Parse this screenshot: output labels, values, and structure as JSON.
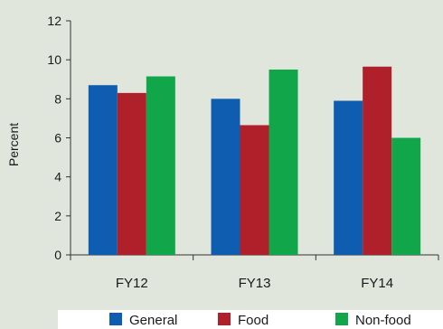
{
  "chart_data": {
    "type": "bar",
    "categories": [
      "FY12",
      "FY13",
      "FY14"
    ],
    "series": [
      {
        "name": "General",
        "values": [
          8.7,
          8.0,
          7.9
        ],
        "color": "#0f5db0"
      },
      {
        "name": "Food",
        "values": [
          8.3,
          6.65,
          9.65
        ],
        "color": "#b0202a"
      },
      {
        "name": "Non-food",
        "values": [
          9.15,
          9.5,
          6.0
        ],
        "color": "#12a64a"
      }
    ],
    "ylabel": "Percent",
    "ylim": [
      0,
      12
    ],
    "yticks": [
      0,
      2,
      4,
      6,
      8,
      10,
      12
    ],
    "legend_position": "bottom",
    "grid": false
  }
}
